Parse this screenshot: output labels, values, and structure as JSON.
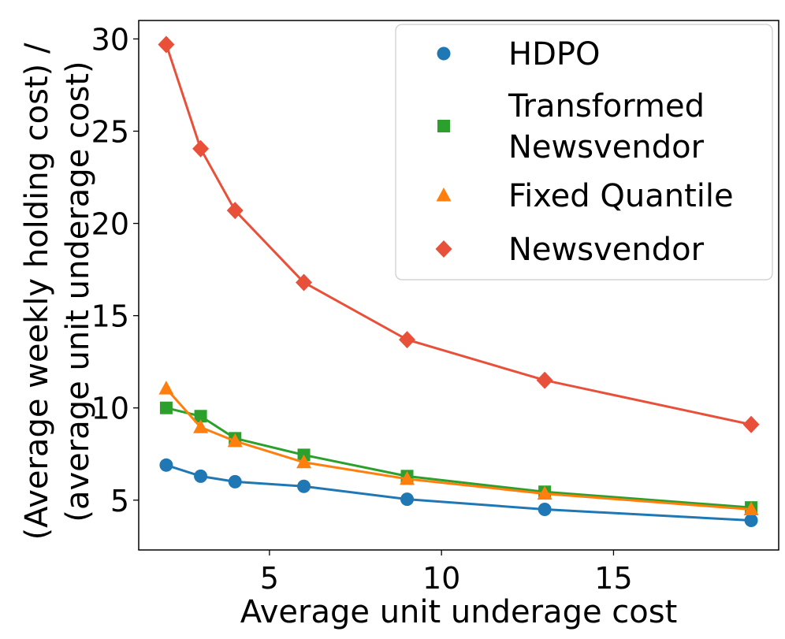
{
  "chart_data": {
    "type": "line",
    "title": "",
    "xlabel": "Average unit underage cost",
    "ylabel_lines": [
      "(Average weekly holding cost) /",
      "(average unit underage cost)"
    ],
    "x": [
      2,
      3,
      4,
      6,
      9,
      13,
      19
    ],
    "xlim": [
      1.2,
      19.8
    ],
    "ylim": [
      2.3,
      31.0
    ],
    "xticks": [
      5,
      10,
      15
    ],
    "yticks": [
      5,
      10,
      15,
      20,
      25,
      30
    ],
    "grid": false,
    "legend_position": "top-right",
    "series": [
      {
        "name": "HDPO",
        "marker": "circle",
        "color": "#1f77b4",
        "values": [
          6.9,
          6.3,
          6.0,
          5.75,
          5.05,
          4.5,
          3.9
        ]
      },
      {
        "name": "Transformed Newsvendor",
        "legend_lines": [
          "Transformed",
          "Newsvendor"
        ],
        "marker": "square",
        "color": "#2ca02c",
        "values": [
          10.0,
          9.55,
          8.35,
          7.45,
          6.3,
          5.45,
          4.6
        ]
      },
      {
        "name": "Fixed Quantile",
        "marker": "triangle",
        "color": "#ff7f0e",
        "values": [
          11.05,
          8.95,
          8.2,
          7.05,
          6.15,
          5.35,
          4.5
        ]
      },
      {
        "name": "Newsvendor",
        "marker": "diamond",
        "color": "#e8503a",
        "values": [
          29.7,
          24.05,
          20.7,
          16.8,
          13.7,
          11.5,
          9.1
        ]
      }
    ]
  }
}
